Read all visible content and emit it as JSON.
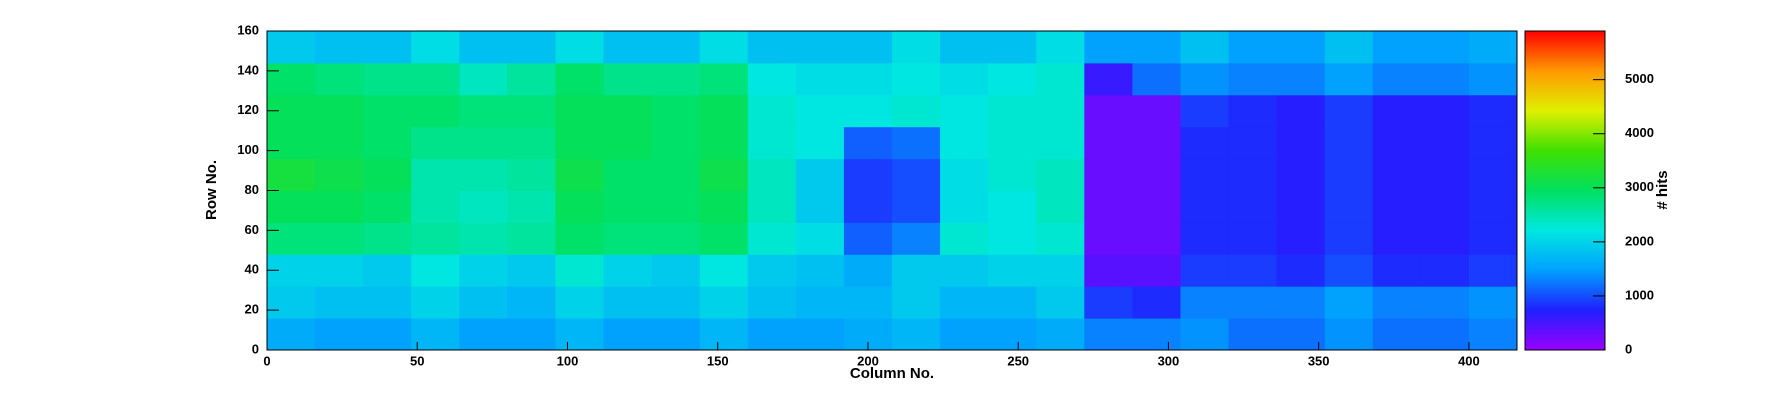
{
  "chart_data": {
    "type": "heatmap",
    "x_label": "Column No.",
    "y_label": "Row No.",
    "z_label": "# hits",
    "x_bins": [
      0,
      16,
      32,
      48,
      64,
      80,
      96,
      112,
      128,
      144,
      160,
      176,
      192,
      208,
      224,
      240,
      256,
      272,
      288,
      304,
      320,
      336,
      352,
      368,
      384,
      400,
      416
    ],
    "y_bins": [
      0,
      16,
      32,
      48,
      64,
      80,
      96,
      112,
      128,
      144,
      160
    ],
    "z": [
      [
        1600,
        1500,
        1500,
        1700,
        1500,
        1500,
        1700,
        1500,
        1500,
        1700,
        1500,
        1500,
        1600,
        1700,
        1500,
        1500,
        1600,
        1300,
        1300,
        1400,
        1200,
        1200,
        1400,
        1200,
        1200,
        1300
      ],
      [
        1900,
        1800,
        1800,
        2000,
        1800,
        1700,
        2000,
        1800,
        1800,
        2000,
        1800,
        1700,
        1700,
        1900,
        1700,
        1700,
        1900,
        900,
        800,
        1300,
        1300,
        1300,
        1500,
        1300,
        1300,
        1400
      ],
      [
        2000,
        2000,
        1900,
        2200,
        2000,
        1900,
        2300,
        2000,
        1900,
        2200,
        1900,
        1800,
        1600,
        1900,
        1900,
        2000,
        2000,
        400,
        400,
        900,
        900,
        800,
        1000,
        800,
        800,
        900
      ],
      [
        2800,
        2800,
        2700,
        2600,
        2500,
        2600,
        2900,
        2800,
        2800,
        2900,
        2300,
        2100,
        1100,
        1300,
        2300,
        2200,
        2300,
        300,
        300,
        800,
        800,
        700,
        900,
        700,
        700,
        800
      ],
      [
        3000,
        3000,
        2900,
        2500,
        2400,
        2500,
        3000,
        2900,
        2900,
        3000,
        2400,
        1900,
        900,
        1000,
        2100,
        2200,
        2400,
        300,
        300,
        800,
        800,
        700,
        900,
        700,
        700,
        800
      ],
      [
        3200,
        3100,
        3000,
        2500,
        2500,
        2600,
        3100,
        2900,
        2900,
        3100,
        2400,
        1900,
        900,
        1000,
        2100,
        2300,
        2400,
        300,
        300,
        800,
        800,
        700,
        900,
        700,
        700,
        800
      ],
      [
        3000,
        3000,
        2900,
        2700,
        2700,
        2700,
        3000,
        3000,
        2900,
        3000,
        2300,
        2200,
        1100,
        1200,
        2200,
        2300,
        2300,
        300,
        300,
        800,
        800,
        700,
        900,
        700,
        700,
        800
      ],
      [
        3000,
        3000,
        2900,
        2900,
        2800,
        2800,
        3000,
        3000,
        2900,
        3000,
        2300,
        2200,
        2200,
        2300,
        2200,
        2300,
        2300,
        300,
        300,
        900,
        800,
        700,
        900,
        700,
        700,
        800
      ],
      [
        2900,
        2800,
        2700,
        2700,
        2400,
        2600,
        2900,
        2700,
        2700,
        2800,
        2200,
        2100,
        2100,
        2200,
        2100,
        2200,
        2300,
        600,
        1200,
        1400,
        1300,
        1300,
        1500,
        1300,
        1300,
        1400
      ],
      [
        1900,
        1800,
        1800,
        2100,
        1800,
        1800,
        2100,
        1800,
        1800,
        2100,
        1800,
        1800,
        1800,
        2100,
        1800,
        1800,
        2100,
        1500,
        1500,
        1800,
        1500,
        1500,
        1800,
        1500,
        1500,
        1600
      ]
    ],
    "xlim": [
      0,
      416
    ],
    "xticks": [
      0,
      50,
      100,
      150,
      200,
      250,
      300,
      350,
      400
    ],
    "ylim": [
      0,
      160
    ],
    "yticks": [
      0,
      20,
      40,
      60,
      80,
      100,
      120,
      140,
      160
    ],
    "zlim": [
      0,
      5900
    ],
    "zticks": [
      0,
      1000,
      2000,
      3000,
      4000,
      5000
    ],
    "colormap": [
      "#9900ff",
      "#2020ff",
      "#00a0ff",
      "#00e8e0",
      "#00e060",
      "#40e000",
      "#e0f000",
      "#ff9900",
      "#ff0000"
    ]
  }
}
